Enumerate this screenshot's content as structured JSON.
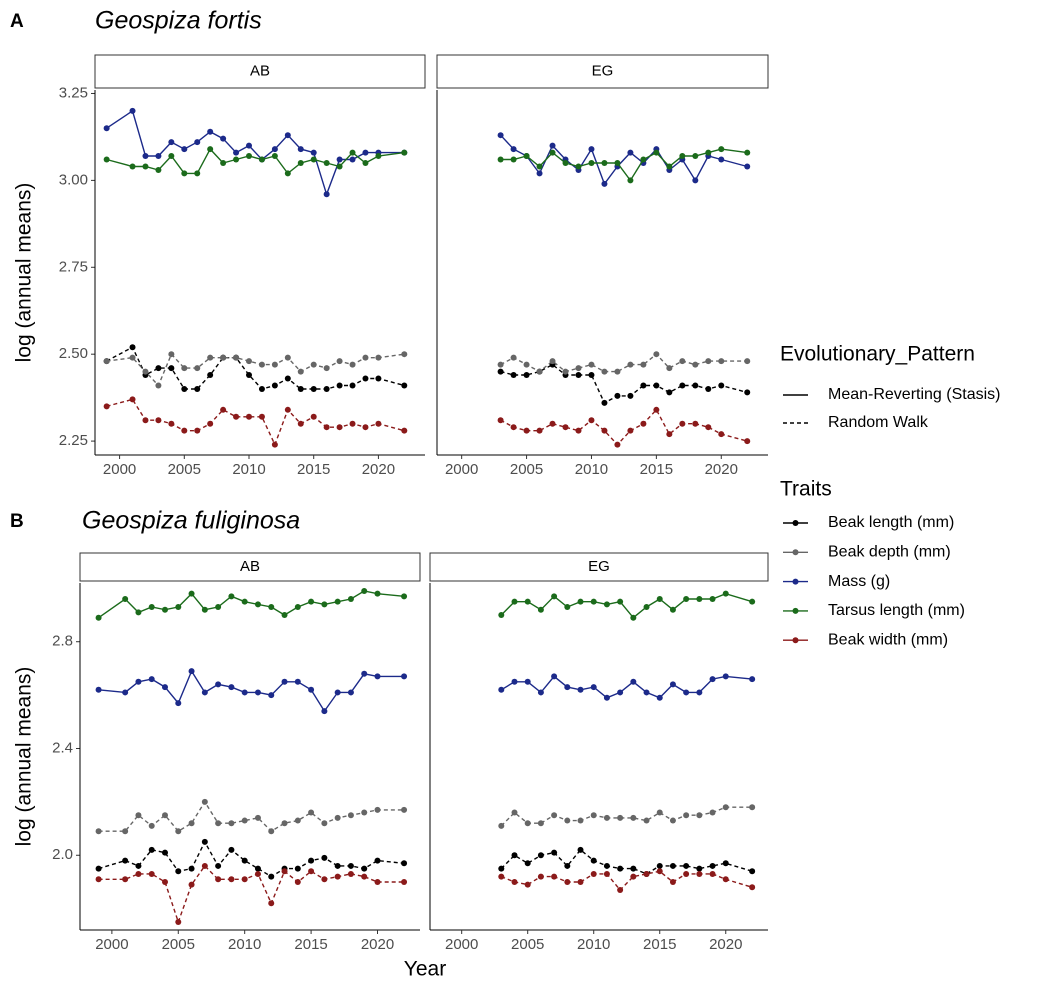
{
  "chart_data": {
    "type": "line",
    "xlabel": "Year",
    "ylabel": "log (annual means)",
    "xticks": [
      2000,
      2005,
      2010,
      2015,
      2020
    ],
    "pattern_legend": {
      "title": "Evolutionary_Pattern",
      "entries": [
        {
          "label": "Mean-Reverting (Stasis)",
          "linetype": "solid"
        },
        {
          "label": "Random Walk",
          "linetype": "dashed"
        }
      ]
    },
    "traits_legend_title": "Traits",
    "series": [
      {
        "name": "Beak length (mm)",
        "color": "#000000",
        "linetype": "dashed"
      },
      {
        "name": "Beak depth (mm)",
        "color": "#666666",
        "linetype": "dashed"
      },
      {
        "name": "Mass (g)",
        "color": "#1c2a8a",
        "linetype": "solid"
      },
      {
        "name": "Tarsus length (mm)",
        "color": "#1b6b1b",
        "linetype": "solid"
      },
      {
        "name": "Beak width (mm)",
        "color": "#8b1a1a",
        "linetype": "dashed"
      }
    ],
    "panels": [
      {
        "label": "A",
        "title": "Geospiza fortis",
        "xlim": [
          1998.1,
          2023.6
        ],
        "ylim": [
          2.21,
          3.26
        ],
        "yticks": [
          2.25,
          2.5,
          2.75,
          3,
          3.25
        ],
        "ytick_labels": [
          "2.25",
          "2.50",
          "2.75",
          "3.00",
          "3.25"
        ],
        "facets": [
          {
            "strip": "AB",
            "x": [
              1999,
              2001,
              2002,
              2003,
              2004,
              2005,
              2006,
              2007,
              2008,
              2009,
              2010,
              2011,
              2012,
              2013,
              2014,
              2015,
              2016,
              2017,
              2018,
              2019,
              2020,
              2022
            ],
            "values": [
              [
                2.48,
                2.52,
                2.44,
                2.46,
                2.46,
                2.4,
                2.4,
                2.44,
                2.49,
                2.49,
                2.44,
                2.4,
                2.41,
                2.43,
                2.4,
                2.4,
                2.4,
                2.41,
                2.41,
                2.43,
                2.43,
                2.41
              ],
              [
                2.48,
                2.49,
                2.45,
                2.41,
                2.5,
                2.46,
                2.46,
                2.49,
                2.49,
                2.49,
                2.48,
                2.47,
                2.47,
                2.49,
                2.45,
                2.47,
                2.46,
                2.48,
                2.47,
                2.49,
                2.49,
                2.5
              ],
              [
                3.15,
                3.2,
                3.07,
                3.07,
                3.11,
                3.09,
                3.11,
                3.14,
                3.12,
                3.08,
                3.1,
                3.06,
                3.09,
                3.13,
                3.09,
                3.08,
                2.96,
                3.06,
                3.06,
                3.08,
                3.08,
                3.08
              ],
              [
                3.06,
                3.04,
                3.04,
                3.03,
                3.07,
                3.02,
                3.02,
                3.09,
                3.05,
                3.06,
                3.07,
                3.06,
                3.07,
                3.02,
                3.05,
                3.06,
                3.05,
                3.04,
                3.08,
                3.05,
                3.07,
                3.08
              ],
              [
                2.35,
                2.37,
                2.31,
                2.31,
                2.3,
                2.28,
                2.28,
                2.3,
                2.34,
                2.32,
                2.32,
                2.32,
                2.24,
                2.34,
                2.3,
                2.32,
                2.29,
                2.29,
                2.3,
                2.29,
                2.3,
                2.28
              ]
            ]
          },
          {
            "strip": "EG",
            "x": [
              2003,
              2004,
              2005,
              2006,
              2007,
              2008,
              2009,
              2010,
              2011,
              2012,
              2013,
              2014,
              2015,
              2016,
              2017,
              2018,
              2019,
              2020,
              2022
            ],
            "values": [
              [
                2.45,
                2.44,
                2.44,
                2.45,
                2.47,
                2.44,
                2.44,
                2.44,
                2.36,
                2.38,
                2.38,
                2.41,
                2.41,
                2.39,
                2.41,
                2.41,
                2.4,
                2.41,
                2.39
              ],
              [
                2.47,
                2.49,
                2.47,
                2.45,
                2.48,
                2.45,
                2.46,
                2.47,
                2.45,
                2.45,
                2.47,
                2.47,
                2.5,
                2.46,
                2.48,
                2.47,
                2.48,
                2.48,
                2.48
              ],
              [
                3.13,
                3.09,
                3.07,
                3.02,
                3.1,
                3.06,
                3.03,
                3.09,
                2.99,
                3.04,
                3.08,
                3.05,
                3.09,
                3.03,
                3.06,
                3.0,
                3.07,
                3.06,
                3.04
              ],
              [
                3.06,
                3.06,
                3.07,
                3.04,
                3.08,
                3.05,
                3.04,
                3.05,
                3.05,
                3.05,
                3.0,
                3.06,
                3.08,
                3.04,
                3.07,
                3.07,
                3.08,
                3.09,
                3.08
              ],
              [
                2.31,
                2.29,
                2.28,
                2.28,
                2.3,
                2.29,
                2.28,
                2.31,
                2.28,
                2.24,
                2.28,
                2.3,
                2.34,
                2.27,
                2.3,
                2.3,
                2.29,
                2.27,
                2.25
              ]
            ]
          }
        ]
      },
      {
        "label": "B",
        "title": "Geospiza fuliginosa",
        "xlim": [
          1997.6,
          2023.2
        ],
        "ylim": [
          1.72,
          3.02
        ],
        "yticks": [
          2,
          2.4,
          2.8
        ],
        "ytick_labels": [
          "2.0",
          "2.4",
          "2.8"
        ],
        "facets": [
          {
            "strip": "AB",
            "x": [
              1999,
              2001,
              2002,
              2003,
              2004,
              2005,
              2006,
              2007,
              2008,
              2009,
              2010,
              2011,
              2012,
              2013,
              2014,
              2015,
              2016,
              2017,
              2018,
              2019,
              2020,
              2022
            ],
            "values": [
              [
                1.95,
                1.98,
                1.96,
                2.02,
                2.01,
                1.94,
                1.95,
                2.05,
                1.96,
                2.02,
                1.98,
                1.95,
                1.92,
                1.95,
                1.95,
                1.98,
                1.99,
                1.96,
                1.96,
                1.95,
                1.98,
                1.97
              ],
              [
                2.09,
                2.09,
                2.15,
                2.11,
                2.15,
                2.09,
                2.12,
                2.2,
                2.12,
                2.12,
                2.13,
                2.14,
                2.09,
                2.12,
                2.13,
                2.16,
                2.12,
                2.14,
                2.15,
                2.16,
                2.17,
                2.17
              ],
              [
                2.62,
                2.61,
                2.65,
                2.66,
                2.63,
                2.57,
                2.69,
                2.61,
                2.64,
                2.63,
                2.61,
                2.61,
                2.6,
                2.65,
                2.65,
                2.62,
                2.54,
                2.61,
                2.61,
                2.68,
                2.67,
                2.67
              ],
              [
                2.89,
                2.96,
                2.91,
                2.93,
                2.92,
                2.93,
                2.98,
                2.92,
                2.93,
                2.97,
                2.95,
                2.94,
                2.93,
                2.9,
                2.93,
                2.95,
                2.94,
                2.95,
                2.96,
                2.99,
                2.98,
                2.97
              ],
              [
                1.91,
                1.91,
                1.93,
                1.93,
                1.9,
                1.75,
                1.89,
                1.96,
                1.91,
                1.91,
                1.91,
                1.93,
                1.82,
                1.94,
                1.9,
                1.94,
                1.91,
                1.92,
                1.93,
                1.92,
                1.9,
                1.9
              ]
            ]
          },
          {
            "strip": "EG",
            "x": [
              2003,
              2004,
              2005,
              2006,
              2007,
              2008,
              2009,
              2010,
              2011,
              2012,
              2013,
              2014,
              2015,
              2016,
              2017,
              2018,
              2019,
              2020,
              2022
            ],
            "values": [
              [
                1.95,
                2.0,
                1.97,
                2.0,
                2.01,
                1.96,
                2.02,
                1.98,
                1.96,
                1.95,
                1.95,
                1.93,
                1.96,
                1.96,
                1.96,
                1.95,
                1.96,
                1.97,
                1.94
              ],
              [
                2.11,
                2.16,
                2.12,
                2.12,
                2.15,
                2.13,
                2.13,
                2.15,
                2.14,
                2.14,
                2.14,
                2.13,
                2.16,
                2.13,
                2.15,
                2.15,
                2.16,
                2.18,
                2.18
              ],
              [
                2.62,
                2.65,
                2.65,
                2.61,
                2.67,
                2.63,
                2.62,
                2.63,
                2.59,
                2.61,
                2.65,
                2.61,
                2.59,
                2.64,
                2.61,
                2.61,
                2.66,
                2.67,
                2.66
              ],
              [
                2.9,
                2.95,
                2.95,
                2.92,
                2.97,
                2.93,
                2.95,
                2.95,
                2.94,
                2.95,
                2.89,
                2.93,
                2.96,
                2.92,
                2.96,
                2.96,
                2.96,
                2.98,
                2.95
              ],
              [
                1.92,
                1.9,
                1.89,
                1.92,
                1.92,
                1.9,
                1.9,
                1.93,
                1.93,
                1.87,
                1.92,
                1.93,
                1.94,
                1.9,
                1.93,
                1.93,
                1.93,
                1.91,
                1.88
              ]
            ]
          }
        ]
      }
    ]
  }
}
